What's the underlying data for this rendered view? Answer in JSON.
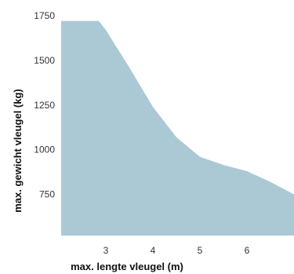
{
  "chart_data": {
    "type": "area",
    "xlabel": "max. lengte vleugel (m)",
    "ylabel": "max. gewicht vleugel (kg)",
    "xlim": [
      2.05,
      7.0
    ],
    "ylim": [
      520,
      1750
    ],
    "x_ticks": [
      "3",
      "4",
      "5",
      "6"
    ],
    "y_ticks": [
      "1750",
      "1500",
      "1250",
      "1000",
      "750"
    ],
    "grid": false,
    "series": [
      {
        "x": [
          2.05,
          2.85,
          3.0,
          3.5,
          4.0,
          4.5,
          5.0,
          5.5,
          6.0,
          6.5,
          7.0
        ],
        "y": [
          1720,
          1720,
          1670,
          1460,
          1240,
          1070,
          960,
          915,
          880,
          820,
          750
        ]
      }
    ],
    "colors": {
      "fill": "#abc8d5"
    }
  }
}
